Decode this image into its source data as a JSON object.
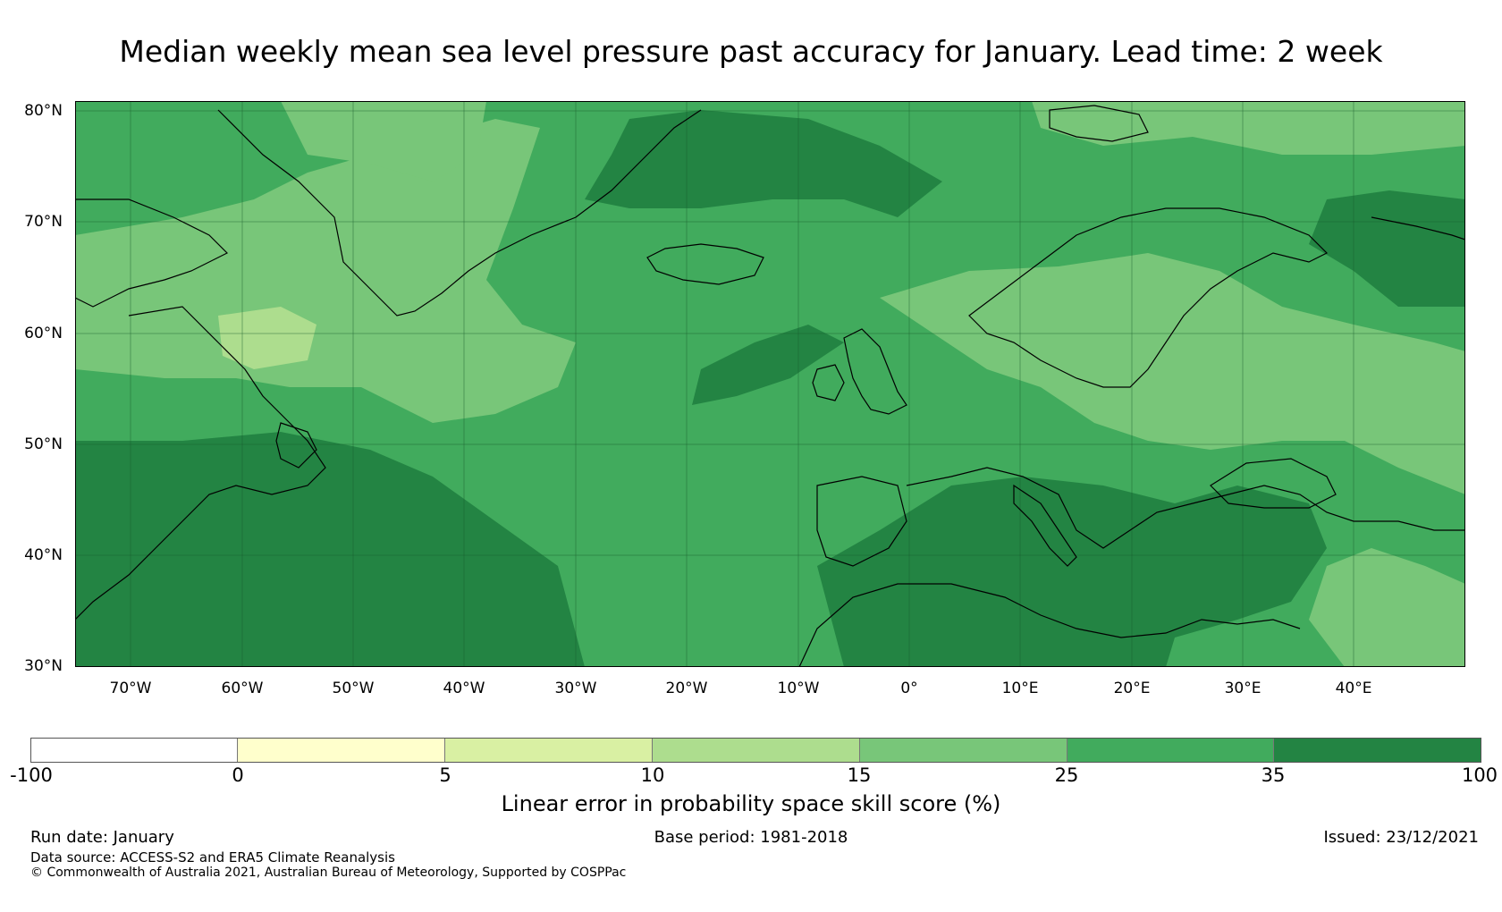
{
  "title": "Median weekly mean sea level pressure past accuracy for January. Lead time: 2 week",
  "map": {
    "lat_labels": [
      "80°N",
      "70°N",
      "60°N",
      "50°N",
      "40°N",
      "30°N"
    ],
    "lon_labels": [
      "70°W",
      "60°W",
      "50°W",
      "40°W",
      "30°W",
      "20°W",
      "10°W",
      "0°",
      "10°E",
      "20°E",
      "30°E",
      "40°E"
    ],
    "extent": {
      "lon_min": -75,
      "lon_max": 50,
      "lat_min": 30,
      "lat_max": 81
    }
  },
  "colorbar": {
    "label": "Linear error in probability space skill score (%)",
    "ticks": [
      "-100",
      "0",
      "5",
      "10",
      "15",
      "25",
      "35",
      "100"
    ],
    "colors": [
      "#ffffff",
      "#ffffcc",
      "#d9f0a3",
      "#addd8e",
      "#78c679",
      "#41ab5d",
      "#238443"
    ]
  },
  "footer": {
    "run_date": "Run date: January",
    "base_period": "Base period: 1981-2018",
    "issued": "Issued: 23/12/2021",
    "data_source": "Data source: ACCESS-S2 and ERA5 Climate Reanalysis",
    "copyright": "© Commonwealth of Australia 2021, Australian Bureau of Meteorology, Supported by COSPPac"
  }
}
